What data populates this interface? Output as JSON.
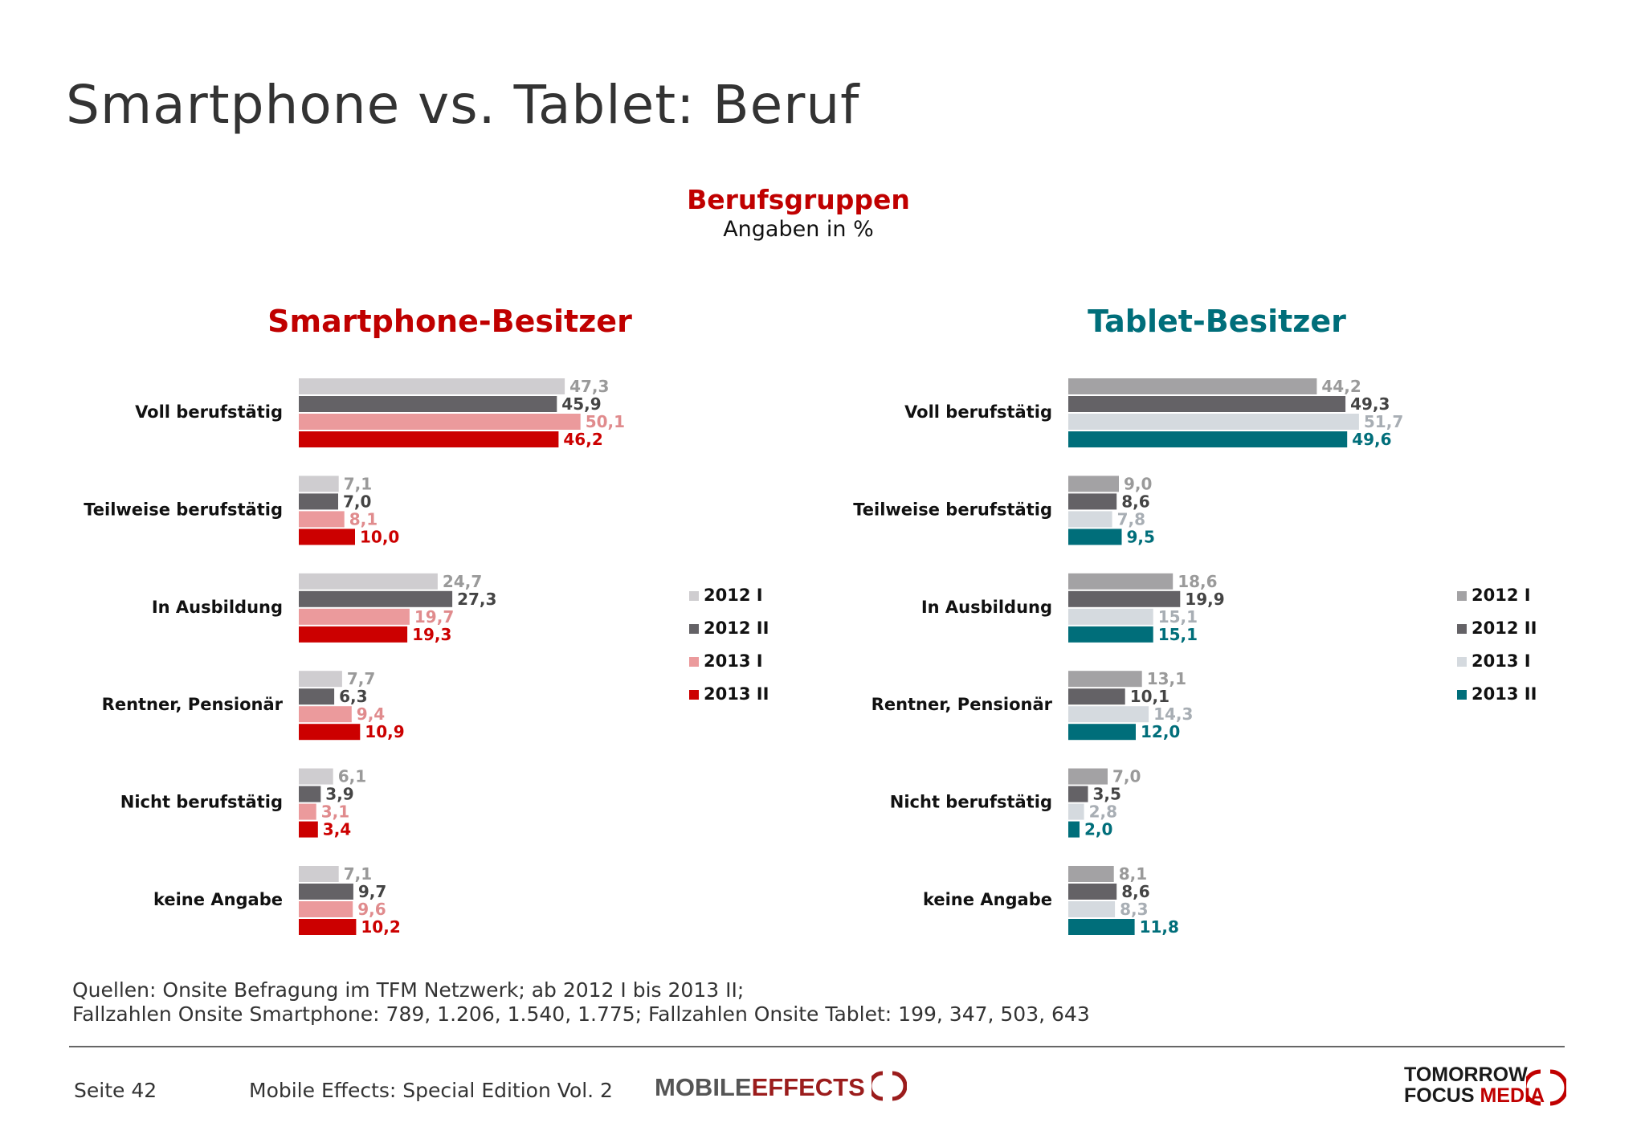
{
  "header": {
    "title": "Smartphone vs. Tablet: Beruf",
    "subtitle": "Berufsgruppen",
    "unit": "Angaben in %"
  },
  "colors": {
    "smartphone_title": "#c00000",
    "tablet_title": "#006e7a"
  },
  "chart_data": [
    {
      "type": "bar",
      "orientation": "horizontal",
      "title": "Smartphone-Besitzer",
      "categories": [
        "Voll berufstätig",
        "Teilweise berufstätig",
        "In Ausbildung",
        "Rentner, Pensionär",
        "Nicht berufstätig",
        "keine Angabe"
      ],
      "series": [
        {
          "name": "2012 I",
          "color": "#cfcdd0",
          "label_color": "#9a9a9a",
          "values": [
            47.3,
            7.1,
            24.7,
            7.7,
            6.1,
            7.1
          ]
        },
        {
          "name": "2012 II",
          "color": "#646266",
          "label_color": "#444444",
          "values": [
            45.9,
            7.0,
            27.3,
            6.3,
            3.9,
            9.7
          ]
        },
        {
          "name": "2013 I",
          "color": "#eb9a9c",
          "label_color": "#e08b8d",
          "values": [
            50.1,
            8.1,
            19.7,
            9.4,
            3.1,
            9.6
          ]
        },
        {
          "name": "2013 II",
          "color": "#cc0000",
          "label_color": "#cc0000",
          "values": [
            46.2,
            10.0,
            19.3,
            10.9,
            3.4,
            10.2
          ]
        }
      ],
      "labels": [
        [
          "47,3",
          "45,9",
          "50,1",
          "46,2"
        ],
        [
          "7,1",
          "7,0",
          "8,1",
          "10,0"
        ],
        [
          "24,7",
          "27,3",
          "19,7",
          "19,3"
        ],
        [
          "7,7",
          "6,3",
          "9,4",
          "10,9"
        ],
        [
          "6,1",
          "3,9",
          "3,1",
          "3,4"
        ],
        [
          "7,1",
          "9,7",
          "9,6",
          "10,2"
        ]
      ],
      "legend": "right",
      "grid": false
    },
    {
      "type": "bar",
      "orientation": "horizontal",
      "title": "Tablet-Besitzer",
      "categories": [
        "Voll berufstätig",
        "Teilweise berufstätig",
        "In Ausbildung",
        "Rentner, Pensionär",
        "Nicht berufstätig",
        "keine Angabe"
      ],
      "series": [
        {
          "name": "2012 I",
          "color": "#a3a2a4",
          "label_color": "#9a9a9a",
          "values": [
            44.2,
            9.0,
            18.6,
            13.1,
            7.0,
            8.1
          ]
        },
        {
          "name": "2012 II",
          "color": "#646266",
          "label_color": "#444444",
          "values": [
            49.3,
            8.6,
            19.9,
            10.1,
            3.5,
            8.6
          ]
        },
        {
          "name": "2013 I",
          "color": "#d5dadf",
          "label_color": "#a8aeb4",
          "values": [
            51.7,
            7.8,
            15.1,
            14.3,
            2.8,
            8.3
          ]
        },
        {
          "name": "2013 II",
          "color": "#006e7a",
          "label_color": "#006e7a",
          "values": [
            49.6,
            9.5,
            15.1,
            12.0,
            2.0,
            11.8
          ]
        }
      ],
      "labels": [
        [
          "44,2",
          "49,3",
          "51,7",
          "49,6"
        ],
        [
          "9,0",
          "8,6",
          "7,8",
          "9,5"
        ],
        [
          "18,6",
          "19,9",
          "15,1",
          "15,1"
        ],
        [
          "13,1",
          "10,1",
          "14,3",
          "12,0"
        ],
        [
          "7,0",
          "3,5",
          "2,8",
          "2,0"
        ],
        [
          "8,1",
          "8,6",
          "8,3",
          "11,8"
        ]
      ],
      "legend": "right",
      "grid": false
    }
  ],
  "footer": {
    "source_line1": "Quellen: Onsite Befragung im TFM Netzwerk; ab 2012 I bis 2013 II;",
    "source_line2": "Fallzahlen Onsite Smartphone: 789, 1.206, 1.540, 1.775; Fallzahlen Onsite Tablet: 199, 347, 503, 643",
    "page": "Seite 42",
    "publication": "Mobile Effects: Special Edition Vol. 2",
    "logo_mobile": "MOBILE",
    "logo_effects": "EFFECTS",
    "logo_tfm_line1": "TOMORROW",
    "logo_tfm_focus": "FOCUS",
    "logo_tfm_media": "MEDIA"
  }
}
